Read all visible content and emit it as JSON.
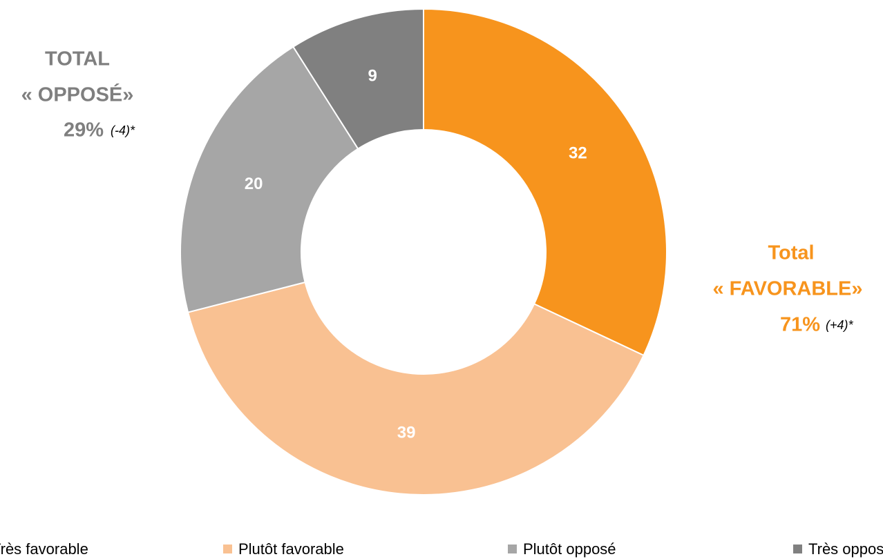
{
  "chart_data": {
    "type": "donut",
    "categories": [
      "Très favorable",
      "Plutôt favorable",
      "Plutôt opposé",
      "Très opposé"
    ],
    "values": [
      32,
      39,
      20,
      9
    ],
    "colors": [
      "#f7941d",
      "#f9c192",
      "#a6a6a6",
      "#808080"
    ],
    "legend": "bottom",
    "annotations": {
      "opposed": {
        "line1": "TOTAL",
        "line2": "« OPPOSÉ»",
        "total": "29%",
        "change": "(-4)*",
        "color": "#7f7f7f"
      },
      "favorable": {
        "line1": "Total",
        "line2": "« FAVORABLE»",
        "total": "71%",
        "change": "(+4)*",
        "color": "#f7941d"
      }
    }
  }
}
